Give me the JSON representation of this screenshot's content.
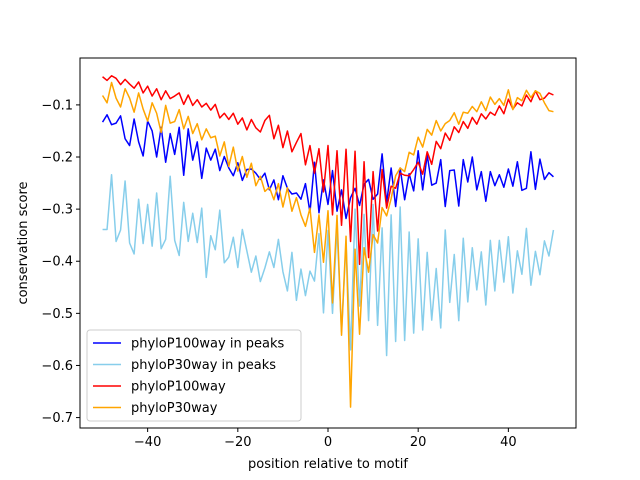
{
  "chart_data": {
    "type": "line",
    "title": "",
    "xlabel": "position relative to motif",
    "ylabel": "conservation score",
    "xlim": [
      -55,
      55
    ],
    "ylim": [
      -0.72,
      -0.01
    ],
    "xticks": [
      -40,
      -20,
      0,
      20,
      40
    ],
    "yticks": [
      -0.7,
      -0.6,
      -0.5,
      -0.4,
      -0.3,
      -0.2,
      -0.1
    ],
    "xtick_labels": [
      "−40",
      "−20",
      "0",
      "20",
      "40"
    ],
    "ytick_labels": [
      "−0.7",
      "−0.6",
      "−0.5",
      "−0.4",
      "−0.3",
      "−0.2",
      "−0.1"
    ],
    "grid": false,
    "legend_position": "lower-left",
    "x": [
      -50,
      -49,
      -48,
      -47,
      -46,
      -45,
      -44,
      -43,
      -42,
      -41,
      -40,
      -39,
      -38,
      -37,
      -36,
      -35,
      -34,
      -33,
      -32,
      -31,
      -30,
      -29,
      -28,
      -27,
      -26,
      -25,
      -24,
      -23,
      -22,
      -21,
      -20,
      -19,
      -18,
      -17,
      -16,
      -15,
      -14,
      -13,
      -12,
      -11,
      -10,
      -9,
      -8,
      -7,
      -6,
      -5,
      -4,
      -3,
      -2,
      -1,
      0,
      1,
      2,
      3,
      4,
      5,
      6,
      7,
      8,
      9,
      10,
      11,
      12,
      13,
      14,
      15,
      16,
      17,
      18,
      19,
      20,
      21,
      22,
      23,
      24,
      25,
      26,
      27,
      28,
      29,
      30,
      31,
      32,
      33,
      34,
      35,
      36,
      37,
      38,
      39,
      40,
      41,
      42,
      43,
      44,
      45,
      46,
      47,
      48,
      49,
      50
    ],
    "series": [
      {
        "name": "phyloP100way in peaks",
        "color": "#0000ff",
        "values": [
          -0.133,
          -0.119,
          -0.138,
          -0.135,
          -0.121,
          -0.165,
          -0.178,
          -0.127,
          -0.171,
          -0.198,
          -0.131,
          -0.15,
          -0.2,
          -0.143,
          -0.21,
          -0.155,
          -0.195,
          -0.143,
          -0.235,
          -0.146,
          -0.206,
          -0.171,
          -0.241,
          -0.183,
          -0.206,
          -0.185,
          -0.226,
          -0.199,
          -0.221,
          -0.236,
          -0.211,
          -0.245,
          -0.224,
          -0.223,
          -0.231,
          -0.243,
          -0.231,
          -0.263,
          -0.244,
          -0.282,
          -0.236,
          -0.26,
          -0.271,
          -0.269,
          -0.281,
          -0.251,
          -0.306,
          -0.21,
          -0.307,
          -0.244,
          -0.291,
          -0.226,
          -0.304,
          -0.263,
          -0.318,
          -0.278,
          -0.26,
          -0.293,
          -0.252,
          -0.243,
          -0.281,
          -0.271,
          -0.194,
          -0.288,
          -0.221,
          -0.295,
          -0.221,
          -0.282,
          -0.232,
          -0.265,
          -0.188,
          -0.263,
          -0.196,
          -0.254,
          -0.25,
          -0.205,
          -0.295,
          -0.226,
          -0.225,
          -0.294,
          -0.205,
          -0.248,
          -0.2,
          -0.263,
          -0.228,
          -0.285,
          -0.228,
          -0.255,
          -0.234,
          -0.258,
          -0.223,
          -0.256,
          -0.209,
          -0.264,
          -0.26,
          -0.19,
          -0.262,
          -0.204,
          -0.243,
          -0.23,
          -0.238
        ]
      },
      {
        "name": "phyloP30way in peaks",
        "color": "#87ceeb",
        "values": [
          -0.339,
          -0.339,
          -0.234,
          -0.362,
          -0.34,
          -0.246,
          -0.365,
          -0.386,
          -0.281,
          -0.366,
          -0.291,
          -0.371,
          -0.269,
          -0.376,
          -0.358,
          -0.237,
          -0.36,
          -0.389,
          -0.287,
          -0.362,
          -0.308,
          -0.364,
          -0.298,
          -0.431,
          -0.351,
          -0.378,
          -0.302,
          -0.403,
          -0.392,
          -0.354,
          -0.412,
          -0.339,
          -0.38,
          -0.421,
          -0.39,
          -0.439,
          -0.413,
          -0.382,
          -0.412,
          -0.358,
          -0.42,
          -0.457,
          -0.383,
          -0.475,
          -0.415,
          -0.466,
          -0.419,
          -0.438,
          -0.347,
          -0.499,
          -0.341,
          -0.5,
          -0.336,
          -0.535,
          -0.367,
          -0.57,
          -0.3,
          -0.486,
          -0.31,
          -0.514,
          -0.291,
          -0.523,
          -0.336,
          -0.581,
          -0.311,
          -0.554,
          -0.296,
          -0.552,
          -0.344,
          -0.538,
          -0.357,
          -0.532,
          -0.383,
          -0.513,
          -0.414,
          -0.528,
          -0.34,
          -0.479,
          -0.387,
          -0.514,
          -0.356,
          -0.478,
          -0.374,
          -0.455,
          -0.382,
          -0.484,
          -0.36,
          -0.457,
          -0.36,
          -0.44,
          -0.353,
          -0.461,
          -0.38,
          -0.425,
          -0.337,
          -0.446,
          -0.381,
          -0.426,
          -0.361,
          -0.39,
          -0.34
        ]
      },
      {
        "name": "phyloP100way",
        "color": "#ff0000",
        "values": [
          -0.046,
          -0.053,
          -0.044,
          -0.049,
          -0.061,
          -0.051,
          -0.06,
          -0.068,
          -0.056,
          -0.077,
          -0.064,
          -0.083,
          -0.069,
          -0.09,
          -0.073,
          -0.088,
          -0.083,
          -0.077,
          -0.099,
          -0.081,
          -0.101,
          -0.09,
          -0.104,
          -0.097,
          -0.11,
          -0.099,
          -0.125,
          -0.116,
          -0.128,
          -0.116,
          -0.137,
          -0.125,
          -0.148,
          -0.128,
          -0.144,
          -0.152,
          -0.13,
          -0.12,
          -0.165,
          -0.139,
          -0.182,
          -0.15,
          -0.19,
          -0.172,
          -0.155,
          -0.215,
          -0.178,
          -0.231,
          -0.184,
          -0.267,
          -0.178,
          -0.311,
          -0.188,
          -0.331,
          -0.185,
          -0.362,
          -0.189,
          -0.406,
          -0.209,
          -0.393,
          -0.228,
          -0.342,
          -0.224,
          -0.298,
          -0.256,
          -0.26,
          -0.231,
          -0.235,
          -0.236,
          -0.224,
          -0.21,
          -0.233,
          -0.19,
          -0.214,
          -0.17,
          -0.184,
          -0.154,
          -0.168,
          -0.142,
          -0.153,
          -0.132,
          -0.145,
          -0.124,
          -0.137,
          -0.117,
          -0.127,
          -0.114,
          -0.12,
          -0.102,
          -0.117,
          -0.089,
          -0.108,
          -0.096,
          -0.102,
          -0.081,
          -0.094,
          -0.073,
          -0.09,
          -0.087,
          -0.077,
          -0.081
        ]
      },
      {
        "name": "phyloP30way",
        "color": "#ffa500",
        "values": [
          -0.082,
          -0.096,
          -0.057,
          -0.087,
          -0.104,
          -0.069,
          -0.087,
          -0.114,
          -0.077,
          -0.108,
          -0.131,
          -0.096,
          -0.116,
          -0.153,
          -0.101,
          -0.135,
          -0.132,
          -0.109,
          -0.146,
          -0.122,
          -0.155,
          -0.136,
          -0.167,
          -0.146,
          -0.163,
          -0.16,
          -0.198,
          -0.171,
          -0.218,
          -0.181,
          -0.227,
          -0.199,
          -0.239,
          -0.212,
          -0.255,
          -0.237,
          -0.266,
          -0.258,
          -0.282,
          -0.251,
          -0.296,
          -0.259,
          -0.304,
          -0.278,
          -0.311,
          -0.333,
          -0.298,
          -0.383,
          -0.311,
          -0.402,
          -0.303,
          -0.48,
          -0.312,
          -0.542,
          -0.352,
          -0.68,
          -0.377,
          -0.54,
          -0.374,
          -0.421,
          -0.349,
          -0.365,
          -0.297,
          -0.313,
          -0.28,
          -0.236,
          -0.221,
          -0.228,
          -0.191,
          -0.196,
          -0.162,
          -0.181,
          -0.147,
          -0.158,
          -0.13,
          -0.15,
          -0.136,
          -0.13,
          -0.115,
          -0.137,
          -0.114,
          -0.116,
          -0.103,
          -0.113,
          -0.094,
          -0.111,
          -0.085,
          -0.099,
          -0.088,
          -0.101,
          -0.071,
          -0.109,
          -0.086,
          -0.092,
          -0.072,
          -0.086,
          -0.073,
          -0.078,
          -0.096,
          -0.111,
          -0.113
        ]
      }
    ]
  }
}
